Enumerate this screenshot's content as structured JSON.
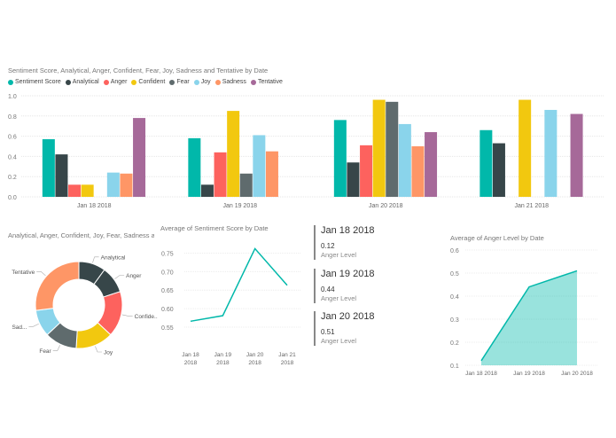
{
  "colors": {
    "Sentiment Score": "#01B8AA",
    "Analytical": "#374649",
    "Anger": "#FD625E",
    "Confident": "#F2C80F",
    "Fear": "#5F6B6D",
    "Joy": "#8AD4EB",
    "Sadness": "#FE9666",
    "Tentative": "#A66999"
  },
  "chart_data": [
    {
      "type": "bar",
      "title": "Sentiment Score, Analytical, Anger, Confident, Fear, Joy, Sadness and Tentative by Date",
      "legend_position": "top-left",
      "categories": [
        "Jan 18 2018",
        "Jan 19 2018",
        "Jan 20 2018",
        "Jan 21 2018"
      ],
      "ylim": [
        0,
        1.0
      ],
      "yticks": [
        "0.0",
        "0.2",
        "0.4",
        "0.6",
        "0.8",
        "1.0"
      ],
      "grid": true,
      "series": [
        {
          "name": "Sentiment Score",
          "values": [
            0.57,
            0.58,
            0.76,
            0.66
          ]
        },
        {
          "name": "Analytical",
          "values": [
            0.42,
            0.12,
            0.34,
            0.53
          ]
        },
        {
          "name": "Anger",
          "values": [
            0.12,
            0.44,
            0.51,
            null
          ]
        },
        {
          "name": "Confident",
          "values": [
            0.12,
            0.85,
            0.96,
            0.96
          ]
        },
        {
          "name": "Fear",
          "values": [
            null,
            0.23,
            0.94,
            null
          ]
        },
        {
          "name": "Joy",
          "values": [
            0.24,
            0.61,
            0.72,
            0.86
          ]
        },
        {
          "name": "Sadness",
          "values": [
            0.23,
            0.45,
            0.5,
            null
          ]
        },
        {
          "name": "Tentative",
          "values": [
            0.78,
            null,
            0.64,
            0.82
          ]
        }
      ]
    },
    {
      "type": "pie",
      "title": "Analytical, Anger, Confident, Joy, Fear, Sadness a...",
      "donut": true,
      "slices": [
        {
          "label": "Analytical",
          "name": "Analytical",
          "value": 10
        },
        {
          "label": "Anger",
          "name": "Analytical",
          "value": 10
        },
        {
          "label": "Confide...",
          "name": "Anger",
          "value": 17
        },
        {
          "label": "Joy",
          "name": "Confident",
          "value": 14
        },
        {
          "label": "Fear",
          "name": "Fear",
          "value": 12
        },
        {
          "label": "Sad...",
          "name": "Joy",
          "value": 10
        },
        {
          "label": "Tentative",
          "name": "Sadness",
          "value": 27
        }
      ]
    },
    {
      "type": "line",
      "title": "Average of Sentiment Score by Date",
      "x": [
        "Jan 18\n2018",
        "Jan 19\n2018",
        "Jan 20\n2018",
        "Jan 21\n2018"
      ],
      "values": [
        0.566,
        0.581,
        0.762,
        0.663
      ],
      "ylim": [
        0.55,
        0.775
      ],
      "yticks": [
        "0.55",
        "0.60",
        "0.65",
        "0.70",
        "0.75"
      ]
    },
    {
      "type": "area",
      "title": "Average of Anger Level by Date",
      "x": [
        "Jan 18 2018",
        "Jan 19 2018",
        "Jan 20 2018"
      ],
      "values": [
        0.12,
        0.44,
        0.51
      ],
      "ylim": [
        0.1,
        0.6
      ],
      "yticks": [
        "0.1",
        "0.2",
        "0.3",
        "0.4",
        "0.5",
        "0.6"
      ]
    }
  ],
  "cards": [
    {
      "date": "Jan 18 2018",
      "value": "0.12",
      "label": "Anger Level"
    },
    {
      "date": "Jan 19 2018",
      "value": "0.44",
      "label": "Anger Level"
    },
    {
      "date": "Jan 20 2018",
      "value": "0.51",
      "label": "Anger Level"
    }
  ]
}
